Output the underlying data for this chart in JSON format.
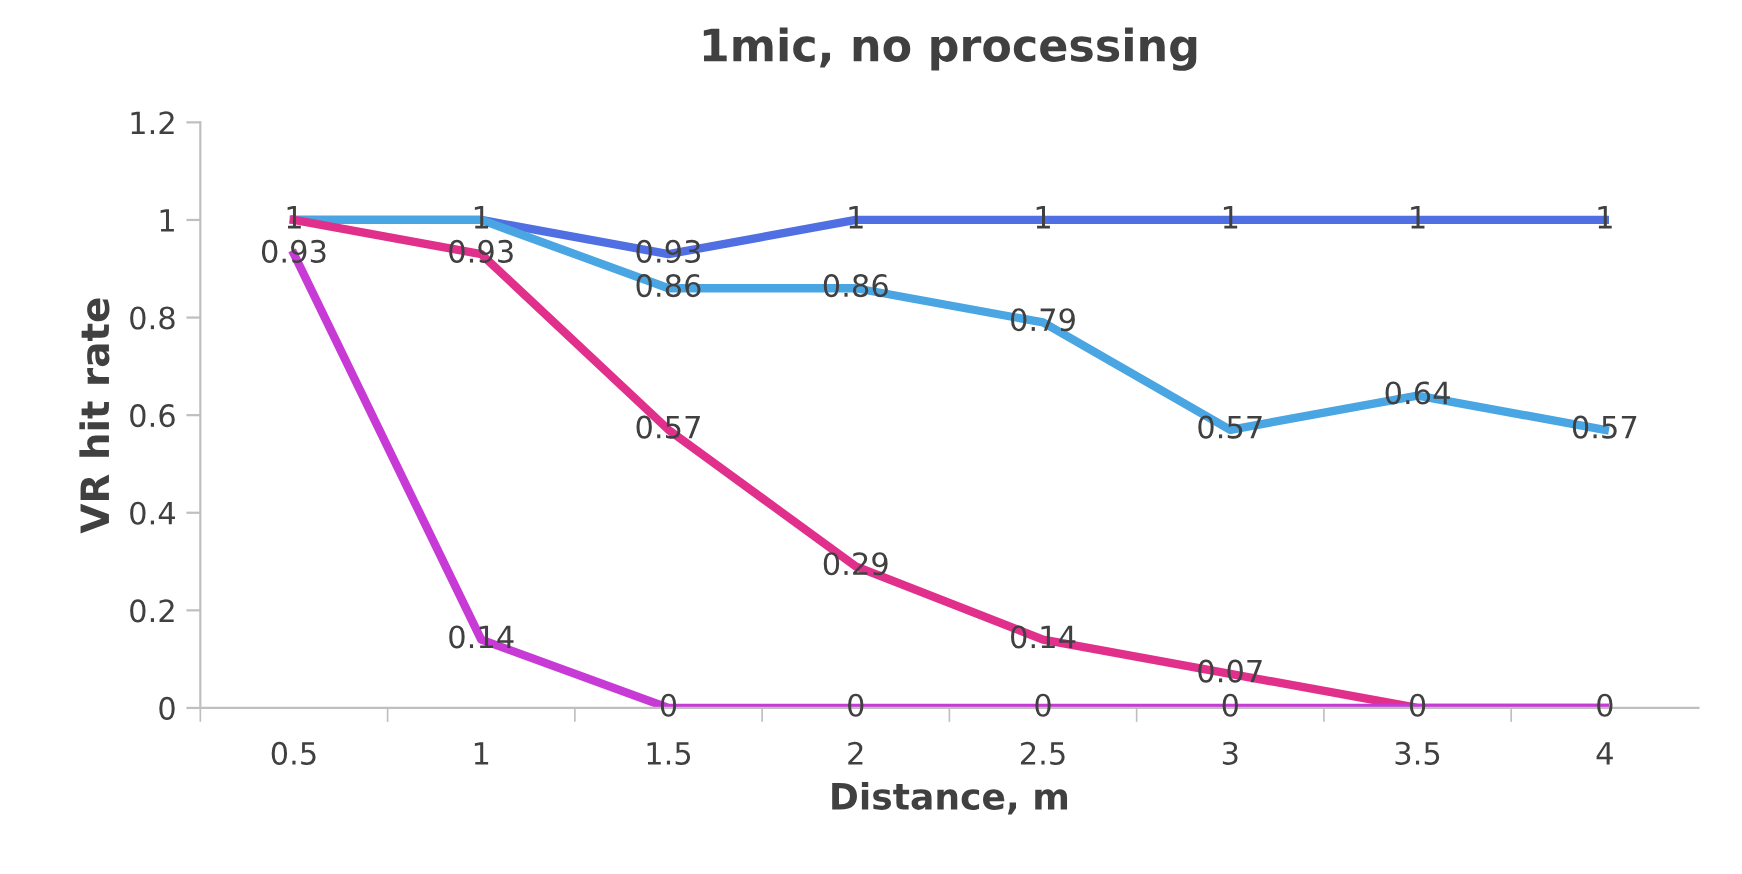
{
  "chart_data": {
    "type": "line",
    "title": "1mic, no processing",
    "xlabel": "Distance, m",
    "ylabel": "VR hit rate",
    "categories": [
      "0.5",
      "1",
      "1.5",
      "2",
      "2.5",
      "3",
      "3.5",
      "4"
    ],
    "series": [
      {
        "color": "#4f6fe3",
        "values": [
          1,
          1,
          0.93,
          1,
          1,
          1,
          1,
          1
        ],
        "value_labels": [
          "1",
          "1",
          "0.93",
          "1",
          "1",
          "1",
          "1",
          "1"
        ]
      },
      {
        "color": "#4aa6e2",
        "values": [
          1,
          1,
          0.86,
          0.86,
          0.79,
          0.57,
          0.64,
          0.57
        ],
        "value_labels": [
          null,
          null,
          "0.86",
          "0.86",
          "0.79",
          "0.57",
          "0.64",
          "0.57"
        ]
      },
      {
        "color": "#e0308c",
        "values": [
          1,
          0.93,
          0.57,
          0.29,
          0.14,
          0.07,
          0,
          0
        ],
        "value_labels": [
          null,
          "0.93",
          "0.57",
          "0.29",
          "0.14",
          "0.07",
          "0",
          "0"
        ]
      },
      {
        "color": "#c83ad6",
        "values": [
          0.93,
          0.14,
          0,
          0,
          0,
          0,
          0,
          0
        ],
        "value_labels": [
          "0.93",
          "0.14",
          "0",
          "0",
          "0",
          "0",
          null,
          null
        ]
      }
    ],
    "ylim": [
      0,
      1.2
    ],
    "yticks": [
      0,
      0.2,
      0.4,
      0.6,
      0.8,
      1,
      1.2
    ],
    "marker": "none",
    "line_style": "solid"
  }
}
